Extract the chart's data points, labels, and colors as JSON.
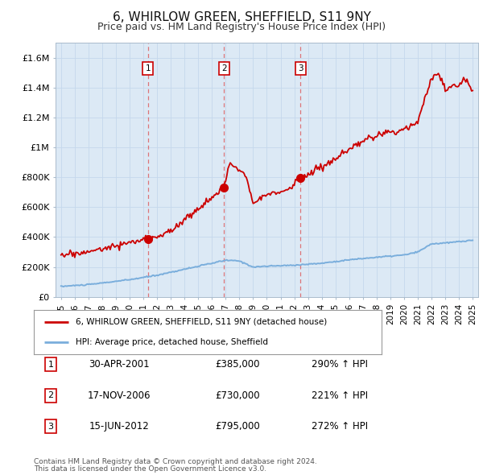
{
  "title": "6, WHIRLOW GREEN, SHEFFIELD, S11 9NY",
  "subtitle": "Price paid vs. HM Land Registry's House Price Index (HPI)",
  "title_fontsize": 11,
  "subtitle_fontsize": 9,
  "fig_bg_color": "#ffffff",
  "plot_bg_color": "#dce9f5",
  "ylim": [
    0,
    1700000
  ],
  "xlim_start": 1994.6,
  "xlim_end": 2025.4,
  "yticks": [
    0,
    200000,
    400000,
    600000,
    800000,
    1000000,
    1200000,
    1400000,
    1600000
  ],
  "ytick_labels": [
    "£0",
    "£200K",
    "£400K",
    "£600K",
    "£800K",
    "£1M",
    "£1.2M",
    "£1.4M",
    "£1.6M"
  ],
  "xticks": [
    1995,
    1996,
    1997,
    1998,
    1999,
    2000,
    2001,
    2002,
    2003,
    2004,
    2005,
    2006,
    2007,
    2008,
    2009,
    2010,
    2011,
    2012,
    2013,
    2014,
    2015,
    2016,
    2017,
    2018,
    2019,
    2020,
    2021,
    2022,
    2023,
    2024,
    2025
  ],
  "sale_events": [
    {
      "label": "1",
      "date_str": "30-APR-2001",
      "year": 2001.33,
      "price": 385000,
      "pct": "290%",
      "direction": "↑"
    },
    {
      "label": "2",
      "date_str": "17-NOV-2006",
      "year": 2006.88,
      "price": 730000,
      "pct": "221%",
      "direction": "↑"
    },
    {
      "label": "3",
      "date_str": "15-JUN-2012",
      "year": 2012.45,
      "price": 795000,
      "pct": "272%",
      "direction": "↑"
    }
  ],
  "legend_line1": "6, WHIRLOW GREEN, SHEFFIELD, S11 9NY (detached house)",
  "legend_line2": "HPI: Average price, detached house, Sheffield",
  "footer_line1": "Contains HM Land Registry data © Crown copyright and database right 2024.",
  "footer_line2": "This data is licensed under the Open Government Licence v3.0.",
  "red_color": "#cc0000",
  "blue_color": "#7aaedc",
  "dashed_color": "#dd4444",
  "grid_color": "#c5d8ec"
}
